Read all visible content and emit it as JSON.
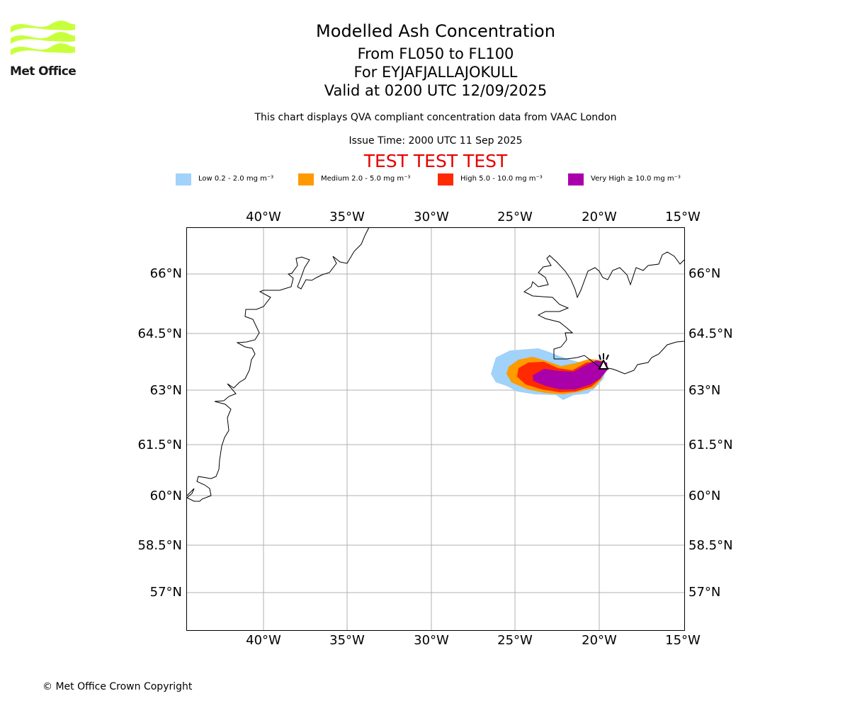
{
  "branding": {
    "logo_text": "Met Office",
    "logo_color": "#c8ff3c"
  },
  "header": {
    "title": "Modelled Ash Concentration",
    "levels": "From FL050 to FL100",
    "volcano": "For EYJAFJALLAJOKULL",
    "valid": "Valid at 0200 UTC 12/09/2025",
    "description": "This chart displays QVA compliant concentration data from VAAC London",
    "issue_time": "Issue Time: 2000 UTC 11 Sep 2025",
    "test_banner": "TEST TEST TEST",
    "test_color": "#e60000"
  },
  "legend": [
    {
      "label": "Low 0.2 - 2.0 mg m⁻³",
      "color": "#a0d2fa"
    },
    {
      "label": "Medium 2.0 - 5.0 mg m⁻³",
      "color": "#ff9a00"
    },
    {
      "label": "High 5.0 - 10.0 mg m⁻³",
      "color": "#ff2a00"
    },
    {
      "label": "Very High ≥ 10.0 mg m⁻³",
      "color": "#aa00aa"
    }
  ],
  "map": {
    "lon_ticks": [
      "40°W",
      "35°W",
      "30°W",
      "25°W",
      "20°W",
      "15°W"
    ],
    "lat_ticks": [
      "66°N",
      "64.5°N",
      "63°N",
      "61.5°N",
      "60°N",
      "58.5°N",
      "57°N"
    ],
    "gridlines": true,
    "gridline_color": "#b0b0b0",
    "volcano_marker": "volcano-icon"
  },
  "footer": {
    "copyright": "© Met Office Crown Copyright"
  }
}
